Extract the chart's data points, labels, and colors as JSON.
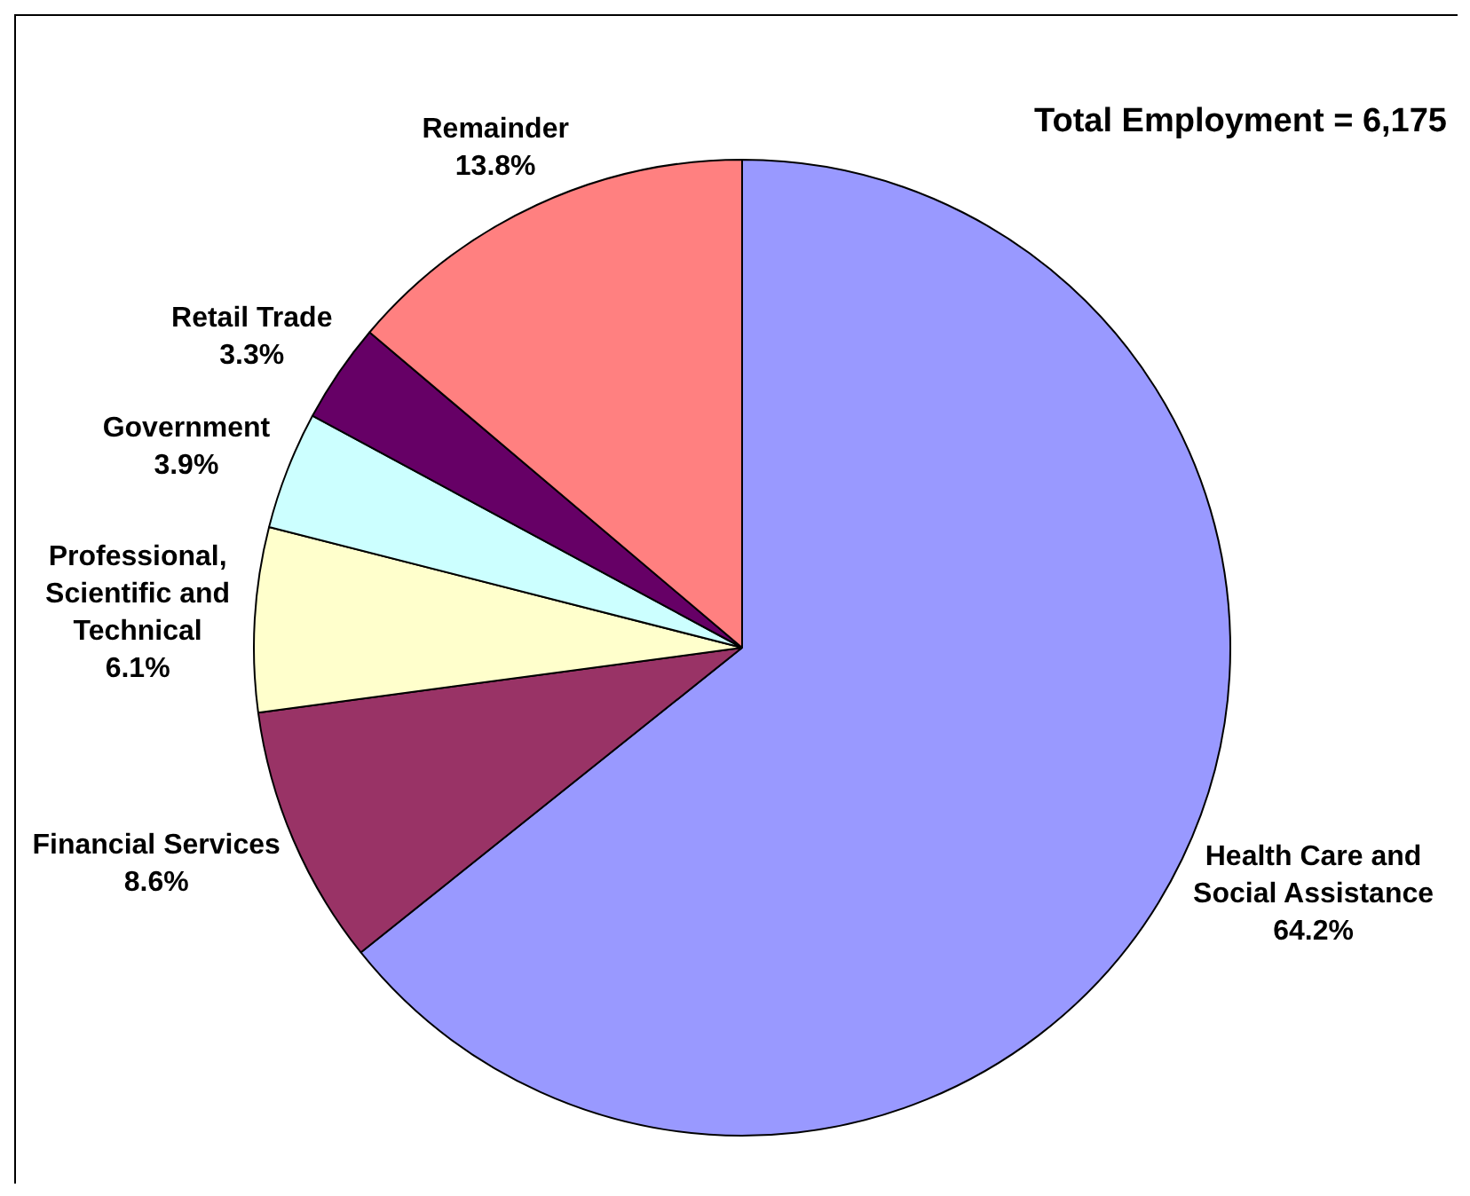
{
  "chart_data": {
    "type": "pie",
    "title": "Total Employment = 6,175",
    "categories": [
      "Health Care and Social Assistance",
      "Financial Services",
      "Professional, Scientific and Technical",
      "Government",
      "Retail Trade",
      "Remainder"
    ],
    "values": [
      64.2,
      8.6,
      6.1,
      3.9,
      3.3,
      13.8
    ],
    "value_labels": [
      "64.2%",
      "8.6%",
      "6.1%",
      "3.9%",
      "3.3%",
      "13.8%"
    ],
    "colors": [
      "#9999ff",
      "#993366",
      "#ffffcc",
      "#ccffff",
      "#660066",
      "#ff8080"
    ],
    "legend": false
  }
}
